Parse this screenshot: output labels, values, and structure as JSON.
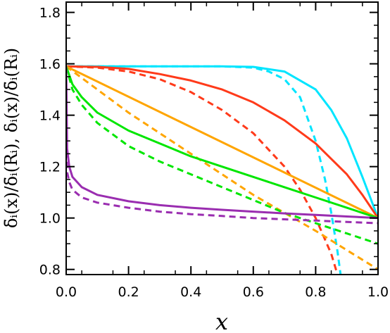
{
  "chart_data": {
    "type": "line",
    "xlabel": "x",
    "ylabel": "δ̄ᵢ(x)/δ̄ᵢ(Rᵢ),  δᵢ(x)/δ̄ᵢ(Rᵢ)",
    "xlim": [
      0.0,
      1.0
    ],
    "ylim": [
      0.78,
      1.84
    ],
    "x_ticks": [
      "0.0",
      "0.2",
      "0.4",
      "0.6",
      "0.8",
      "1.0"
    ],
    "y_ticks": [
      "0.8",
      "1.0",
      "1.2",
      "1.4",
      "1.6",
      "1.8"
    ],
    "grid": false,
    "series": [
      {
        "color": "#00e5ff",
        "style": "solid",
        "x": [
          0,
          0.1,
          0.2,
          0.3,
          0.4,
          0.5,
          0.6,
          0.7,
          0.8,
          0.85,
          0.9,
          0.95,
          1.0
        ],
        "y": [
          1.59,
          1.59,
          1.59,
          1.59,
          1.59,
          1.59,
          1.588,
          1.57,
          1.5,
          1.42,
          1.31,
          1.16,
          1.0
        ]
      },
      {
        "color": "#00e5ff",
        "style": "dashed",
        "x": [
          0,
          0.2,
          0.4,
          0.5,
          0.6,
          0.65,
          0.7,
          0.75,
          0.8,
          0.83,
          0.85,
          0.87,
          0.88
        ],
        "y": [
          1.59,
          1.59,
          1.59,
          1.59,
          1.585,
          1.57,
          1.54,
          1.47,
          1.3,
          1.15,
          1.02,
          0.87,
          0.78
        ]
      },
      {
        "color": "#ff3a1a",
        "style": "solid",
        "x": [
          0,
          0.1,
          0.2,
          0.3,
          0.4,
          0.5,
          0.6,
          0.7,
          0.8,
          0.9,
          0.95,
          1.0
        ],
        "y": [
          1.59,
          1.588,
          1.58,
          1.56,
          1.535,
          1.5,
          1.45,
          1.38,
          1.29,
          1.17,
          1.09,
          1.0
        ]
      },
      {
        "color": "#ff3a1a",
        "style": "dashed",
        "x": [
          0,
          0.1,
          0.2,
          0.3,
          0.4,
          0.5,
          0.6,
          0.7,
          0.75,
          0.8,
          0.85,
          0.87
        ],
        "y": [
          1.59,
          1.585,
          1.57,
          1.54,
          1.49,
          1.42,
          1.33,
          1.2,
          1.11,
          1.0,
          0.86,
          0.78
        ]
      },
      {
        "color": "#ffa500",
        "style": "solid",
        "x": [
          0,
          1.0
        ],
        "y": [
          1.59,
          1.0
        ]
      },
      {
        "color": "#ffa500",
        "style": "dashed",
        "x": [
          0,
          0.2,
          0.4,
          0.6,
          0.8,
          1.0
        ],
        "y": [
          1.59,
          1.41,
          1.25,
          1.09,
          0.95,
          0.8
        ]
      },
      {
        "color": "#00e600",
        "style": "solid",
        "x": [
          0,
          0.02,
          0.05,
          0.1,
          0.2,
          0.3,
          0.4,
          0.5,
          0.6,
          0.7,
          0.8,
          0.9,
          1.0
        ],
        "y": [
          1.59,
          1.52,
          1.47,
          1.41,
          1.34,
          1.29,
          1.24,
          1.2,
          1.16,
          1.12,
          1.08,
          1.04,
          1.0
        ]
      },
      {
        "color": "#00e600",
        "style": "dashed",
        "x": [
          0,
          0.02,
          0.05,
          0.1,
          0.2,
          0.3,
          0.4,
          0.5,
          0.6,
          0.7,
          0.8,
          0.9,
          1.0
        ],
        "y": [
          1.59,
          1.5,
          1.44,
          1.37,
          1.28,
          1.22,
          1.17,
          1.12,
          1.07,
          1.02,
          0.98,
          0.94,
          0.9
        ]
      },
      {
        "color": "#9a2db0",
        "style": "solid",
        "x": [
          0,
          0.003,
          0.01,
          0.02,
          0.05,
          0.1,
          0.2,
          0.3,
          0.4,
          0.5,
          0.6,
          0.7,
          0.8,
          0.9,
          1.0
        ],
        "y": [
          1.59,
          1.27,
          1.2,
          1.16,
          1.12,
          1.09,
          1.065,
          1.05,
          1.04,
          1.032,
          1.025,
          1.018,
          1.012,
          1.006,
          1.0
        ]
      },
      {
        "color": "#9a2db0",
        "style": "dashed",
        "x": [
          0,
          0.003,
          0.01,
          0.02,
          0.05,
          0.1,
          0.2,
          0.3,
          0.4,
          0.5,
          0.6,
          0.7,
          0.8,
          0.9,
          1.0
        ],
        "y": [
          1.26,
          1.18,
          1.14,
          1.11,
          1.08,
          1.06,
          1.04,
          1.025,
          1.015,
          1.008,
          1.0,
          0.995,
          0.99,
          0.985,
          0.98
        ]
      }
    ]
  }
}
